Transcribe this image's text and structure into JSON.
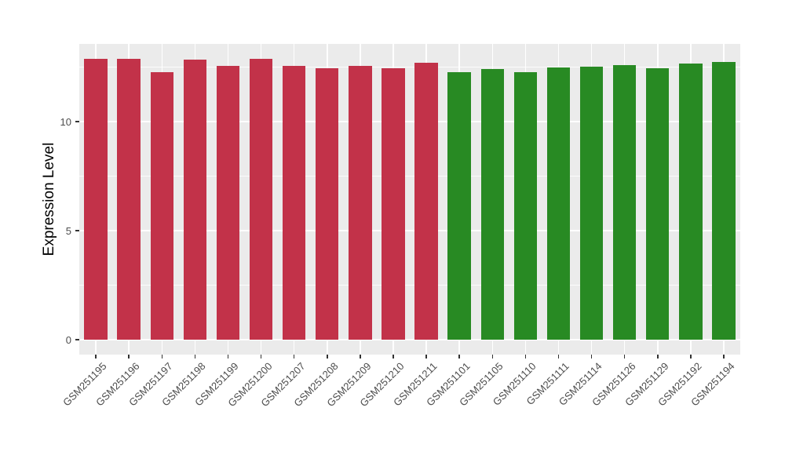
{
  "chart_data": {
    "type": "bar",
    "title": "",
    "xlabel": "",
    "ylabel": "Expression Level",
    "samples": [
      {
        "id": "GSM251195",
        "value": 12.88,
        "group": "red"
      },
      {
        "id": "GSM251196",
        "value": 12.88,
        "group": "red"
      },
      {
        "id": "GSM251197",
        "value": 12.27,
        "group": "red"
      },
      {
        "id": "GSM251198",
        "value": 12.84,
        "group": "red"
      },
      {
        "id": "GSM251199",
        "value": 12.55,
        "group": "red"
      },
      {
        "id": "GSM251200",
        "value": 12.88,
        "group": "red"
      },
      {
        "id": "GSM251207",
        "value": 12.55,
        "group": "red"
      },
      {
        "id": "GSM251208",
        "value": 12.45,
        "group": "red"
      },
      {
        "id": "GSM251209",
        "value": 12.55,
        "group": "red"
      },
      {
        "id": "GSM251210",
        "value": 12.46,
        "group": "red"
      },
      {
        "id": "GSM251211",
        "value": 12.68,
        "group": "red"
      },
      {
        "id": "GSM251101",
        "value": 12.26,
        "group": "green"
      },
      {
        "id": "GSM251105",
        "value": 12.41,
        "group": "green"
      },
      {
        "id": "GSM251110",
        "value": 12.26,
        "group": "green"
      },
      {
        "id": "GSM251111",
        "value": 12.5,
        "group": "green"
      },
      {
        "id": "GSM251114",
        "value": 12.52,
        "group": "green"
      },
      {
        "id": "GSM251126",
        "value": 12.59,
        "group": "green"
      },
      {
        "id": "GSM251129",
        "value": 12.45,
        "group": "green"
      },
      {
        "id": "GSM251192",
        "value": 12.66,
        "group": "green"
      },
      {
        "id": "GSM251194",
        "value": 12.75,
        "group": "green"
      }
    ],
    "y_axis": {
      "tick_labels": [
        "0",
        "5",
        "10"
      ],
      "tick_values": [
        0,
        5,
        10
      ],
      "minor_tick_values": [
        2.5,
        7.5,
        12.5
      ],
      "min": 0,
      "max": 13.56
    },
    "legend": "none",
    "grid": "on",
    "colors": {
      "red": "#C23249",
      "green": "#288A23",
      "panel_background": "#EBEBEB",
      "grid_major": "#FFFFFF",
      "grid_minor": "#FFFFFF",
      "tick_text": "#4D4D4D",
      "axis_title": "#000000",
      "page_background": "#FFFFFF"
    }
  }
}
